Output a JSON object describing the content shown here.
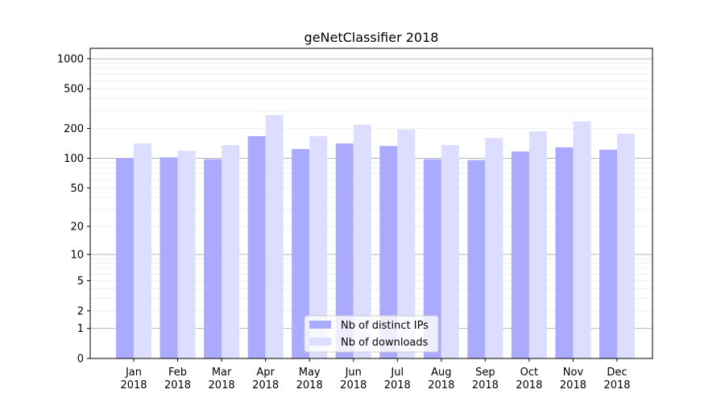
{
  "chart_data": {
    "type": "bar",
    "title": "geNetClassifier 2018",
    "xlabel": "",
    "ylabel": "",
    "y_scale": "log(1+y)",
    "ylim": [
      0,
      1200
    ],
    "yticks": [
      0,
      1,
      2,
      5,
      10,
      20,
      50,
      100,
      200,
      500,
      1000
    ],
    "grid": true,
    "legend_position": "bottom-center",
    "categories": [
      "Jan\n2018",
      "Feb\n2018",
      "Mar\n2018",
      "Apr\n2018",
      "May\n2018",
      "Jun\n2018",
      "Jul\n2018",
      "Aug\n2018",
      "Sep\n2018",
      "Oct\n2018",
      "Nov\n2018",
      "Dec\n2018"
    ],
    "series": [
      {
        "name": "Nb of distinct IPs",
        "color": "#aaaaff",
        "values": [
          100,
          102,
          98,
          167,
          124,
          141,
          133,
          98,
          96,
          117,
          129,
          122
        ]
      },
      {
        "name": "Nb of downloads",
        "color": "#ddddff",
        "values": [
          141,
          119,
          136,
          273,
          167,
          218,
          195,
          136,
          161,
          187,
          235,
          177
        ]
      }
    ]
  }
}
